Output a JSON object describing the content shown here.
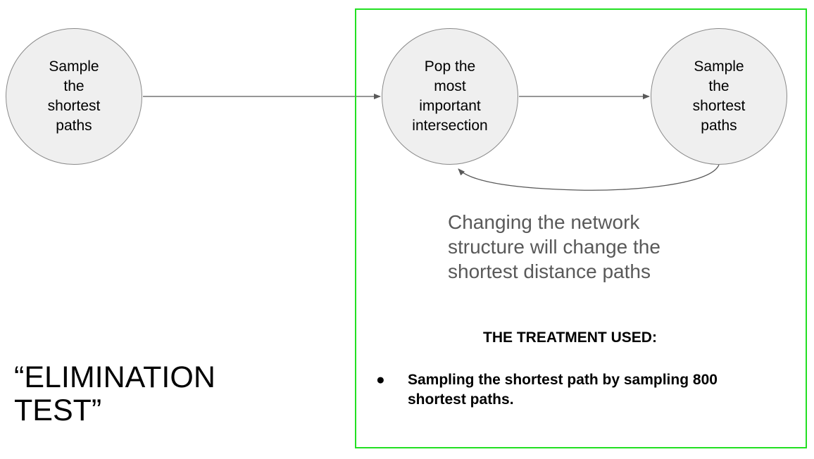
{
  "nodes": {
    "sample_left": {
      "label": "Sample\nthe\nshortest\npaths"
    },
    "pop": {
      "label": "Pop the\nmost\nimportant\nintersection"
    },
    "sample_right": {
      "label": "Sample\nthe\nshortest\npaths"
    }
  },
  "note": "Changing the network\nstructure will change the\nshortest distance paths",
  "treatment": {
    "heading": "THE TREATMENT USED:",
    "bullet": "●",
    "items": [
      "Sampling the shortest path by sampling 800 shortest paths."
    ]
  },
  "title": "“ELIMINATION\nTEST”",
  "colors": {
    "node_fill": "#efefef",
    "node_stroke": "#8a8a8a",
    "edge": "#595959",
    "box_border": "#22e022",
    "note_text": "#595959"
  }
}
